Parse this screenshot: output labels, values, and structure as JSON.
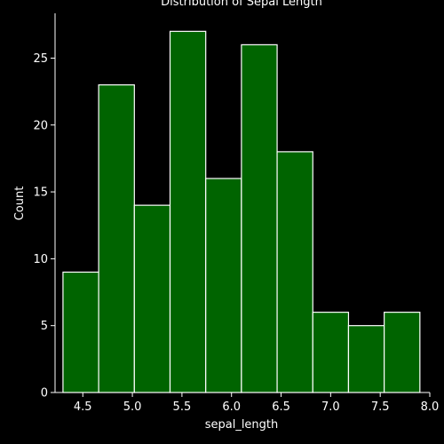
{
  "chart_data": {
    "type": "bar",
    "title": "Distribution of Sepal Length",
    "xlabel": "sepal_length",
    "ylabel": "Count",
    "bin_edges": [
      4.3,
      4.66,
      5.02,
      5.38,
      5.74,
      6.1,
      6.46,
      6.82,
      7.18,
      7.54,
      7.9
    ],
    "values": [
      9,
      23,
      14,
      27,
      16,
      26,
      18,
      6,
      5,
      6
    ],
    "xlim": [
      4.22,
      8.0
    ],
    "ylim": [
      0,
      28.35
    ],
    "x_ticks": [
      4.5,
      5.0,
      5.5,
      6.0,
      6.5,
      7.0,
      7.5,
      8.0
    ],
    "x_tick_labels": [
      "4.5",
      "5.0",
      "5.5",
      "6.0",
      "6.5",
      "7.0",
      "7.5",
      "8.0"
    ],
    "y_ticks": [
      0,
      5,
      10,
      15,
      20,
      25
    ],
    "y_tick_labels": [
      "0",
      "5",
      "10",
      "15",
      "20",
      "25"
    ],
    "grid": false,
    "colors": {
      "background": "#000000",
      "bar_fill": "#006400",
      "bar_edge": "#ffffff",
      "axis": "#ffffff",
      "text": "#ffffff"
    }
  }
}
